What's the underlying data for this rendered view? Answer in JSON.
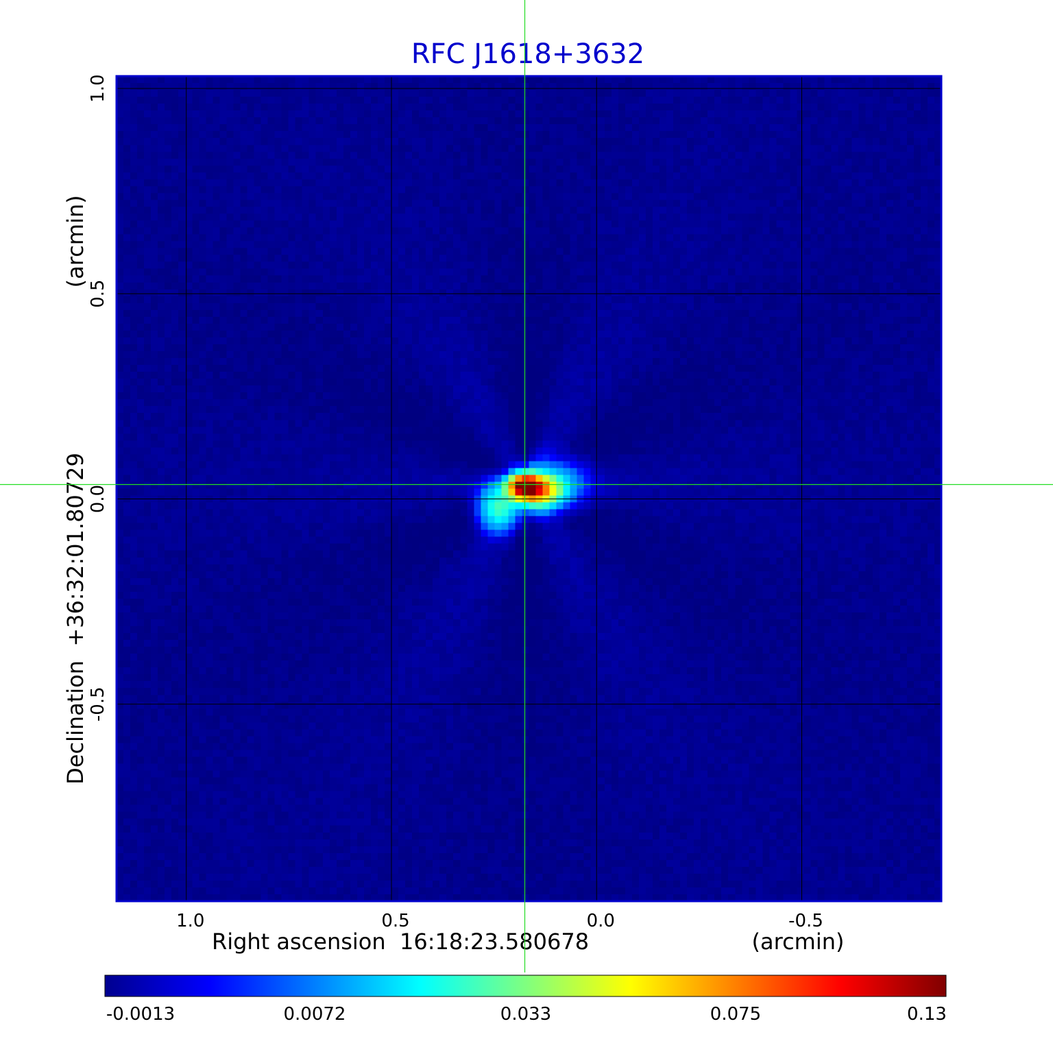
{
  "chart_data": {
    "type": "heatmap",
    "title": "RFC J1618+3632",
    "xlabel": "Right ascension  16:18:23.580678",
    "x_unit": "(arcmin)",
    "ylabel": "Declination  +36:32:01.80729",
    "y_unit": "(arcmin)",
    "x_ticks": [
      "1.0",
      "0.5",
      "0.0",
      "-0.5"
    ],
    "x_tick_values": [
      1.0,
      0.5,
      0.0,
      -0.5
    ],
    "y_ticks": [
      "1.0",
      "0.5",
      "0.0",
      "-0.5"
    ],
    "y_tick_values": [
      1.0,
      0.5,
      0.0,
      -0.5
    ],
    "xlim": [
      1.17,
      -0.84
    ],
    "ylim": [
      -0.98,
      1.03
    ],
    "grid": true,
    "colormap": "jet",
    "colorbar_ticks": [
      "-0.0013",
      "0.0072",
      "0.033",
      "0.075",
      "0.13"
    ],
    "colorbar_tick_values": [
      -0.0013,
      0.0072,
      0.033,
      0.075,
      0.13
    ],
    "crosshair": {
      "x": 0.175,
      "y": 0.035
    },
    "sources": [
      {
        "x": 0.175,
        "y": 0.03,
        "peak": 0.13,
        "sigma_x": 0.025,
        "sigma_y": 0.018
      },
      {
        "x": 0.14,
        "y": 0.02,
        "peak": 0.065,
        "sigma_x": 0.035,
        "sigma_y": 0.025
      },
      {
        "x": 0.24,
        "y": -0.02,
        "peak": 0.028,
        "sigma_x": 0.03,
        "sigma_y": 0.035
      },
      {
        "x": 0.1,
        "y": 0.04,
        "peak": 0.012,
        "sigma_x": 0.05,
        "sigma_y": 0.04
      }
    ],
    "background": -0.0008
  },
  "colors": {
    "title": "#0000cc",
    "frame": "#0000cc",
    "grid": "#000000",
    "crosshair": "#22dd22",
    "text": "#000000"
  }
}
